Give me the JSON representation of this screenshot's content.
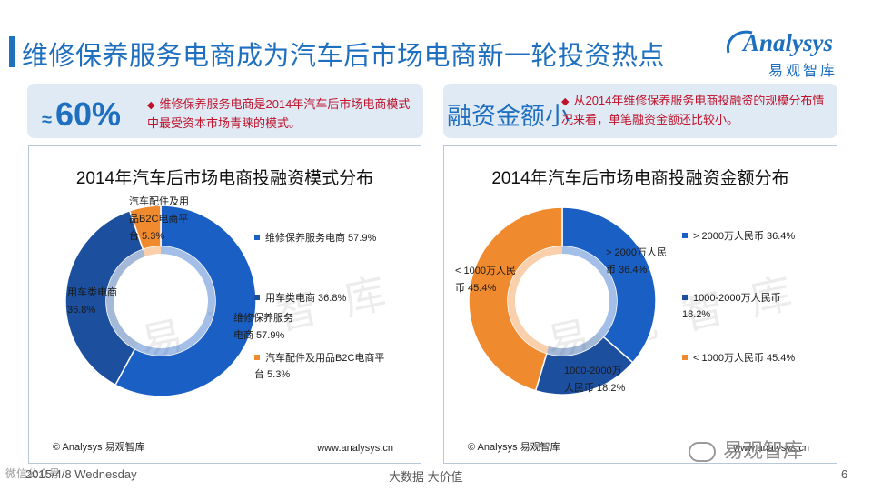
{
  "page": {
    "title": "维修保养服务电商成为汽车后市场电商新一轮投资热点",
    "logo_word": "Analysys",
    "logo_sub": "易观智库",
    "colors": {
      "primary": "#1e6fbf",
      "note": "#c0112b",
      "panel_bg": "#dfeaf4"
    }
  },
  "highlights": {
    "left": {
      "approx": "≈",
      "stat": "60%",
      "note": "维修保养服务电商是2014年汽车后市场电商模式中最受资本市场青睐的模式。"
    },
    "right": {
      "label": "融资金额小",
      "note": "从2014年维修保养服务电商投融资的规模分布情况来看，单笔融资金额还比较小。"
    },
    "bullet": "◆"
  },
  "chart_data": [
    {
      "type": "pie",
      "variant": "donut",
      "title": "2014年汽车后市场电商投融资模式分布",
      "categories": [
        "维修保养服务电商",
        "用车类电商",
        "汽车配件及用品B2C电商平台"
      ],
      "values": [
        57.9,
        36.8,
        5.3
      ],
      "value_labels": [
        "57.9%",
        "36.8%",
        "5.3%"
      ],
      "colors": [
        "#1a5fc4",
        "#1c4f9e",
        "#f08a2e"
      ],
      "slice_labels": [
        [
          "维修保养服务",
          "电商  57.9%"
        ],
        [
          "用车类电商",
          "36.8%"
        ],
        [
          "汽车配件及用",
          "品B2C电商平",
          "台  5.3%"
        ]
      ],
      "legend": [
        [
          "维修保养服务电商  57.9%"
        ],
        [
          "用车类电商  36.8%"
        ],
        [
          "汽车配件及用品B2C电商平",
          "台  5.3%"
        ]
      ],
      "legend_position": "right",
      "footer_left": "© Analysys 易观智库",
      "footer_right": "www.analysys.cn"
    },
    {
      "type": "pie",
      "variant": "donut",
      "title": "2014年汽车后市场电商投融资金额分布",
      "categories": [
        "> 2000万人民币",
        "1000-2000万人民币",
        "< 1000万人民币"
      ],
      "values": [
        36.4,
        18.2,
        45.4
      ],
      "value_labels": [
        "36.4%",
        "18.2%",
        "45.4%"
      ],
      "colors": [
        "#1a5fc4",
        "#1c4f9e",
        "#f08a2e"
      ],
      "slice_labels": [
        [
          "> 2000万人民",
          "币  36.4%"
        ],
        [
          "1000-2000万",
          "人民币  18.2%"
        ],
        [
          "< 1000万人民",
          "币  45.4%"
        ]
      ],
      "legend": [
        [
          "> 2000万人民币  36.4%"
        ],
        [
          "1000-2000万人民币",
          "18.2%"
        ],
        [
          "< 1000万人民币  45.4%"
        ]
      ],
      "legend_position": "right",
      "footer_left": "© Analysys 易观智库",
      "footer_right": "www.analysys.cn"
    }
  ],
  "watermark": "易观智库",
  "footer": {
    "date": "2015/4/8 Wednesday",
    "center": "大数据    大价值",
    "page": "6",
    "brand": "易观智库",
    "corner": "微信公众号"
  }
}
